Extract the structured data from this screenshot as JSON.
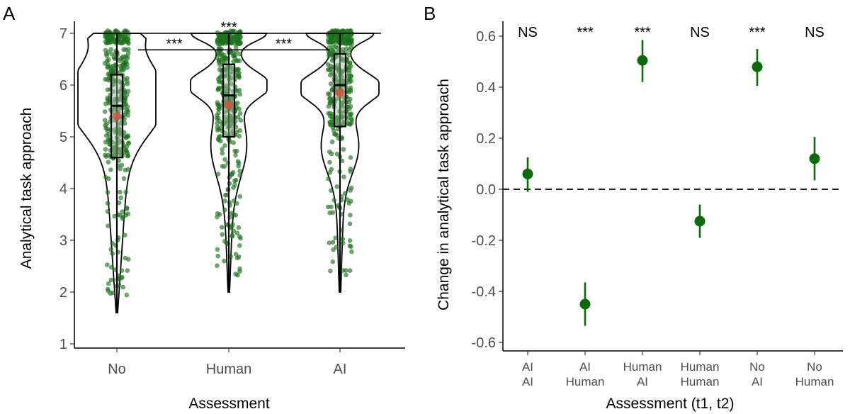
{
  "chart_data": [
    {
      "panel": "A",
      "type": "violin",
      "xlabel": "Assessment",
      "ylabel": "Analytical task approach",
      "categories": [
        "No",
        "Human",
        "AI"
      ],
      "yticks": [
        "1",
        "2",
        "3",
        "4",
        "5",
        "6",
        "7"
      ],
      "ylim": [
        0.85,
        7.15
      ],
      "colors": {
        "points": "#1f7a1f",
        "mean": "#d2553f",
        "line": "#000000"
      },
      "stats": [
        {
          "category": "No",
          "min": 1.6,
          "q1": 4.6,
          "median": 5.6,
          "q3": 6.2,
          "max": 7.0,
          "mean": 5.4,
          "ymin_violin": 1.6
        },
        {
          "category": "Human",
          "min": 2.0,
          "q1": 5.0,
          "median": 5.8,
          "q3": 6.4,
          "max": 7.0,
          "mean": 5.62,
          "ymin_violin": 2.0
        },
        {
          "category": "AI",
          "min": 2.0,
          "q1": 5.2,
          "median": 6.0,
          "q3": 6.6,
          "max": 7.0,
          "mean": 5.85,
          "ymin_violin": 2.0
        }
      ],
      "comparisons": [
        {
          "from": "No",
          "to": "AI",
          "label": "***"
        },
        {
          "from": "No",
          "to": "Human",
          "label": "***"
        },
        {
          "from": "Human",
          "to": "AI",
          "label": "***"
        }
      ]
    },
    {
      "panel": "B",
      "type": "pointrange",
      "xlabel": "Assessment (t1, t2)",
      "ylabel": "Change in analytical task approach",
      "yticks": [
        "0.6",
        "0.4",
        "0.2",
        "0.0",
        "-0.2",
        "-0.4",
        "-0.6"
      ],
      "ylim": [
        -0.63,
        0.66
      ],
      "color": "#0a6b0a",
      "reference_line": 0.0,
      "points": [
        {
          "t1": "AI",
          "t2": "AI",
          "estimate": 0.06,
          "lower": -0.01,
          "upper": 0.125,
          "sig": "NS"
        },
        {
          "t1": "AI",
          "t2": "Human",
          "estimate": -0.45,
          "lower": -0.535,
          "upper": -0.365,
          "sig": "***"
        },
        {
          "t1": "Human",
          "t2": "AI",
          "estimate": 0.505,
          "lower": 0.42,
          "upper": 0.585,
          "sig": "***"
        },
        {
          "t1": "Human",
          "t2": "Human",
          "estimate": -0.125,
          "lower": -0.19,
          "upper": -0.06,
          "sig": "NS"
        },
        {
          "t1": "No",
          "t2": "AI",
          "estimate": 0.48,
          "lower": 0.405,
          "upper": 0.55,
          "sig": "***"
        },
        {
          "t1": "No",
          "t2": "Human",
          "estimate": 0.12,
          "lower": 0.035,
          "upper": 0.205,
          "sig": "NS"
        }
      ]
    }
  ]
}
